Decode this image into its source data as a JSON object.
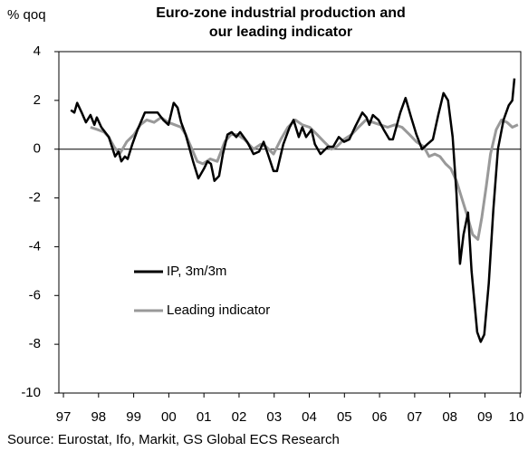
{
  "chart_data": {
    "type": "line",
    "title": [
      "Euro-zone industrial production and",
      "our leading indicator"
    ],
    "y_axis_label": "% qoq",
    "source": "Source: Eurostat, Ifo, Markit, GS Global ECS Research",
    "xlim": [
      1996.87,
      2010.02
    ],
    "xticks": [
      {
        "value": 1997,
        "label": "97"
      },
      {
        "value": 1998,
        "label": "98"
      },
      {
        "value": 1999,
        "label": "99"
      },
      {
        "value": 2000,
        "label": "00"
      },
      {
        "value": 2001,
        "label": "01"
      },
      {
        "value": 2002,
        "label": "02"
      },
      {
        "value": 2003,
        "label": "03"
      },
      {
        "value": 2004,
        "label": "04"
      },
      {
        "value": 2005,
        "label": "05"
      },
      {
        "value": 2006,
        "label": "06"
      },
      {
        "value": 2007,
        "label": "07"
      },
      {
        "value": 2008,
        "label": "08"
      },
      {
        "value": 2009,
        "label": "09"
      },
      {
        "value": 2010,
        "label": "10"
      }
    ],
    "ylim": [
      -10,
      4
    ],
    "yticks": [
      -10,
      -8,
      -6,
      -4,
      -2,
      0,
      2,
      4
    ],
    "grid": false,
    "legend": "center left",
    "series": [
      {
        "name": "IP, 3m/3m",
        "color": "#000000",
        "x": [
          1997.21,
          1997.31,
          1997.39,
          1997.52,
          1997.64,
          1997.77,
          1997.88,
          1997.95,
          1998.08,
          1998.29,
          1998.47,
          1998.57,
          1998.65,
          1998.75,
          1998.83,
          1998.96,
          1999.11,
          1999.32,
          1999.5,
          1999.68,
          1999.84,
          1999.99,
          2000.14,
          2000.25,
          2000.35,
          2000.48,
          2000.69,
          2000.84,
          2001.0,
          2001.1,
          2001.2,
          2001.3,
          2001.43,
          2001.54,
          2001.67,
          2001.79,
          2001.92,
          2002.03,
          2002.23,
          2002.41,
          2002.57,
          2002.7,
          2002.82,
          2002.98,
          2003.08,
          2003.26,
          2003.44,
          2003.55,
          2003.7,
          2003.8,
          2003.91,
          2004.06,
          2004.16,
          2004.32,
          2004.53,
          2004.68,
          2004.84,
          2004.99,
          2005.14,
          2005.3,
          2005.51,
          2005.63,
          2005.71,
          2005.81,
          2005.97,
          2006.12,
          2006.28,
          2006.38,
          2006.59,
          2006.74,
          2006.9,
          2007.05,
          2007.21,
          2007.36,
          2007.52,
          2007.67,
          2007.82,
          2007.95,
          2008.08,
          2008.19,
          2008.29,
          2008.39,
          2008.52,
          2008.62,
          2008.78,
          2008.88,
          2008.98,
          2009.11,
          2009.24,
          2009.37,
          2009.53,
          2009.68,
          2009.78,
          2009.84
        ],
        "values": [
          1.6,
          1.5,
          1.9,
          1.5,
          1.1,
          1.4,
          1.0,
          1.3,
          0.9,
          0.5,
          -0.3,
          -0.1,
          -0.5,
          -0.3,
          -0.4,
          0.2,
          0.8,
          1.5,
          1.5,
          1.5,
          1.2,
          1.0,
          1.9,
          1.7,
          1.1,
          0.6,
          -0.5,
          -1.2,
          -0.8,
          -0.5,
          -0.6,
          -1.3,
          -1.1,
          -0.2,
          0.6,
          0.7,
          0.5,
          0.7,
          0.3,
          -0.2,
          -0.1,
          0.3,
          -0.2,
          -0.9,
          -0.9,
          0.2,
          0.9,
          1.2,
          0.5,
          0.9,
          0.5,
          0.8,
          0.2,
          -0.2,
          0.1,
          0.1,
          0.5,
          0.3,
          0.4,
          0.9,
          1.5,
          1.3,
          1.0,
          1.4,
          1.2,
          0.8,
          0.4,
          0.4,
          1.5,
          2.1,
          1.3,
          0.6,
          0.0,
          0.2,
          0.4,
          1.4,
          2.3,
          2.0,
          0.5,
          -1.8,
          -4.7,
          -3.5,
          -2.6,
          -5.0,
          -7.5,
          -7.9,
          -7.6,
          -5.5,
          -2.5,
          0.0,
          1.2,
          1.8,
          2.0,
          2.9
        ]
      },
      {
        "name": "Leading indicator",
        "color": "#999999",
        "x": [
          1997.77,
          1997.98,
          1998.16,
          1998.29,
          1998.44,
          1998.6,
          1998.8,
          1999.01,
          1999.19,
          1999.37,
          1999.58,
          1999.78,
          1999.99,
          2000.17,
          2000.35,
          2000.48,
          2000.66,
          2000.81,
          2000.97,
          2001.18,
          2001.38,
          2001.59,
          2001.77,
          2001.95,
          2002.15,
          2002.41,
          2002.62,
          2002.77,
          2002.98,
          2003.19,
          2003.39,
          2003.6,
          2003.8,
          2004.01,
          2004.22,
          2004.42,
          2004.63,
          2004.78,
          2004.99,
          2005.2,
          2005.4,
          2005.61,
          2005.81,
          2006.02,
          2006.23,
          2006.43,
          2006.64,
          2006.85,
          2007.05,
          2007.26,
          2007.41,
          2007.57,
          2007.72,
          2007.88,
          2008.03,
          2008.19,
          2008.34,
          2008.49,
          2008.65,
          2008.8,
          2008.91,
          2009.04,
          2009.16,
          2009.32,
          2009.47,
          2009.63,
          2009.78,
          2009.94
        ],
        "values": [
          0.9,
          0.8,
          0.7,
          0.5,
          0.1,
          -0.2,
          0.3,
          0.6,
          1.0,
          1.2,
          1.1,
          1.3,
          1.1,
          1.0,
          0.9,
          0.6,
          0.0,
          -0.5,
          -0.6,
          -0.4,
          -0.5,
          0.3,
          0.6,
          0.6,
          0.4,
          0.0,
          0.2,
          0.1,
          -0.2,
          0.4,
          0.9,
          1.2,
          1.0,
          0.9,
          0.6,
          0.3,
          0.0,
          0.1,
          0.4,
          0.6,
          0.9,
          1.2,
          1.1,
          1.0,
          0.9,
          1.0,
          0.9,
          0.6,
          0.3,
          0.1,
          -0.3,
          -0.2,
          -0.3,
          -0.6,
          -0.8,
          -1.3,
          -2.0,
          -2.7,
          -3.5,
          -3.7,
          -2.8,
          -1.5,
          -0.2,
          0.8,
          1.2,
          1.1,
          0.9,
          1.0
        ]
      }
    ]
  }
}
